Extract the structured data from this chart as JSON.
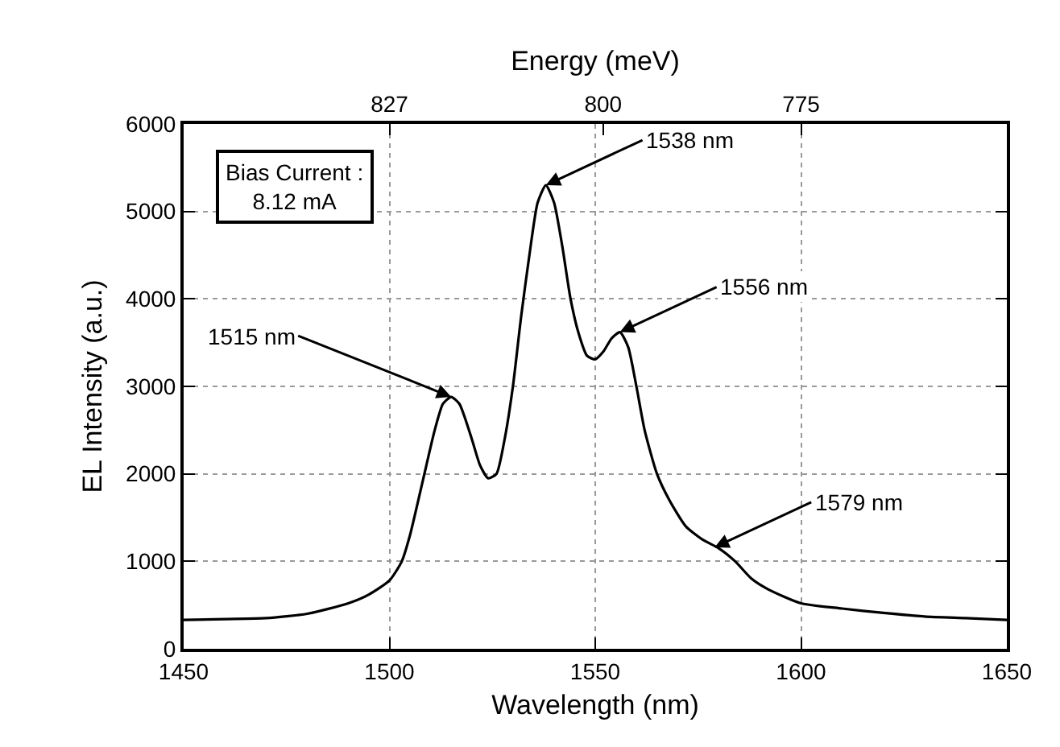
{
  "chart_data": {
    "type": "line",
    "xlabel": "Wavelength (nm)",
    "ylabel": "EL Intensity (a.u.)",
    "x2label": "Energy (meV)",
    "x": [
      1450,
      1460,
      1470,
      1480,
      1490,
      1495,
      1500,
      1503,
      1505,
      1508,
      1511,
      1513,
      1515,
      1517,
      1520,
      1522,
      1524,
      1526,
      1528,
      1530,
      1532,
      1534,
      1536,
      1538,
      1540,
      1542,
      1544,
      1546,
      1548,
      1550,
      1552,
      1554,
      1556,
      1558,
      1560,
      1562,
      1565,
      1568,
      1572,
      1576,
      1580,
      1584,
      1588,
      1592,
      1600,
      1610,
      1620,
      1630,
      1640,
      1650
    ],
    "series": [
      {
        "color": "#000000",
        "values": [
          330,
          340,
          350,
          400,
          520,
          620,
          780,
          1000,
          1300,
          1900,
          2500,
          2800,
          2880,
          2800,
          2400,
          2100,
          1950,
          2000,
          2400,
          3000,
          3800,
          4500,
          5100,
          5300,
          5100,
          4600,
          4000,
          3600,
          3350,
          3310,
          3400,
          3550,
          3620,
          3450,
          3000,
          2500,
          2000,
          1700,
          1400,
          1250,
          1150,
          1000,
          800,
          680,
          520,
          460,
          410,
          370,
          350,
          330
        ]
      }
    ],
    "xlim": [
      1450,
      1650
    ],
    "xticks": [
      1450,
      1500,
      1550,
      1600,
      1650
    ],
    "x2lim": [
      853,
      749
    ],
    "x2ticks": [
      827,
      800,
      775
    ],
    "ylim": [
      0,
      6000
    ],
    "yticks": [
      0,
      1000,
      2000,
      3000,
      4000,
      5000,
      6000
    ],
    "grid": true,
    "marker": "none",
    "line_style": "solid",
    "annotations": [
      "Bias Current :\n8.12 mA",
      {
        "text": "1515 nm",
        "x": 1515,
        "y": 2880
      },
      {
        "text": "1538 nm",
        "x": 1538,
        "y": 5300
      },
      {
        "text": "1556 nm",
        "x": 1556,
        "y": 3620
      },
      {
        "text": "1579 nm",
        "x": 1579,
        "y": 1160
      }
    ]
  }
}
